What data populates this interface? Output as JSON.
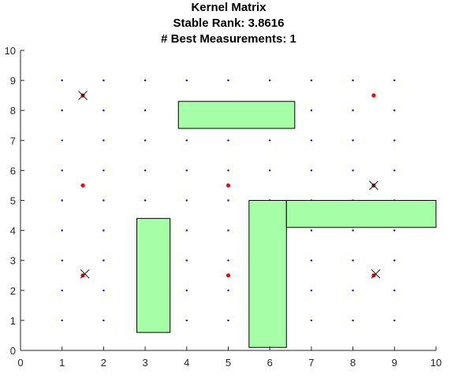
{
  "chart_data": {
    "type": "scatter",
    "title_lines": [
      "Kernel Matrix",
      "Stable Rank: 3.8616",
      "# Best Measurements: 1"
    ],
    "xlim": [
      0,
      10
    ],
    "ylim": [
      0,
      10
    ],
    "xticks": [
      0,
      1,
      2,
      3,
      4,
      5,
      6,
      7,
      8,
      9,
      10
    ],
    "yticks": [
      0,
      1,
      2,
      3,
      4,
      5,
      6,
      7,
      8,
      9,
      10
    ],
    "grid": false,
    "grid_points": {
      "x": [
        1,
        2,
        3,
        4,
        5,
        6,
        7,
        8,
        9
      ],
      "y": [
        1,
        2,
        3,
        4,
        5,
        6,
        7,
        8,
        9
      ],
      "color": "#0000ff"
    },
    "rectangles": {
      "fill": "#a6ffa6",
      "edge": "#000000",
      "items": [
        {
          "x0": 3.8,
          "x1": 6.6,
          "y0": 7.4,
          "y1": 8.3
        },
        {
          "x0": 2.8,
          "x1": 3.6,
          "y0": 0.6,
          "y1": 4.4
        },
        {
          "x0": 5.5,
          "x1": 6.4,
          "y0": 0.1,
          "y1": 5.0
        },
        {
          "x0": 6.4,
          "x1": 10.0,
          "y0": 4.1,
          "y1": 5.0
        }
      ]
    },
    "red_points": {
      "color": "#ff0000",
      "x": [
        1.5,
        8.5,
        1.5,
        5.0,
        8.5,
        1.5,
        5.0,
        8.5
      ],
      "y": [
        8.5,
        8.5,
        5.5,
        5.5,
        5.5,
        2.5,
        2.5,
        2.5
      ]
    },
    "cross_markers": {
      "color": "#000000",
      "x": [
        1.5,
        8.5,
        1.55,
        8.55
      ],
      "y": [
        8.5,
        5.5,
        2.55,
        2.55
      ]
    }
  }
}
